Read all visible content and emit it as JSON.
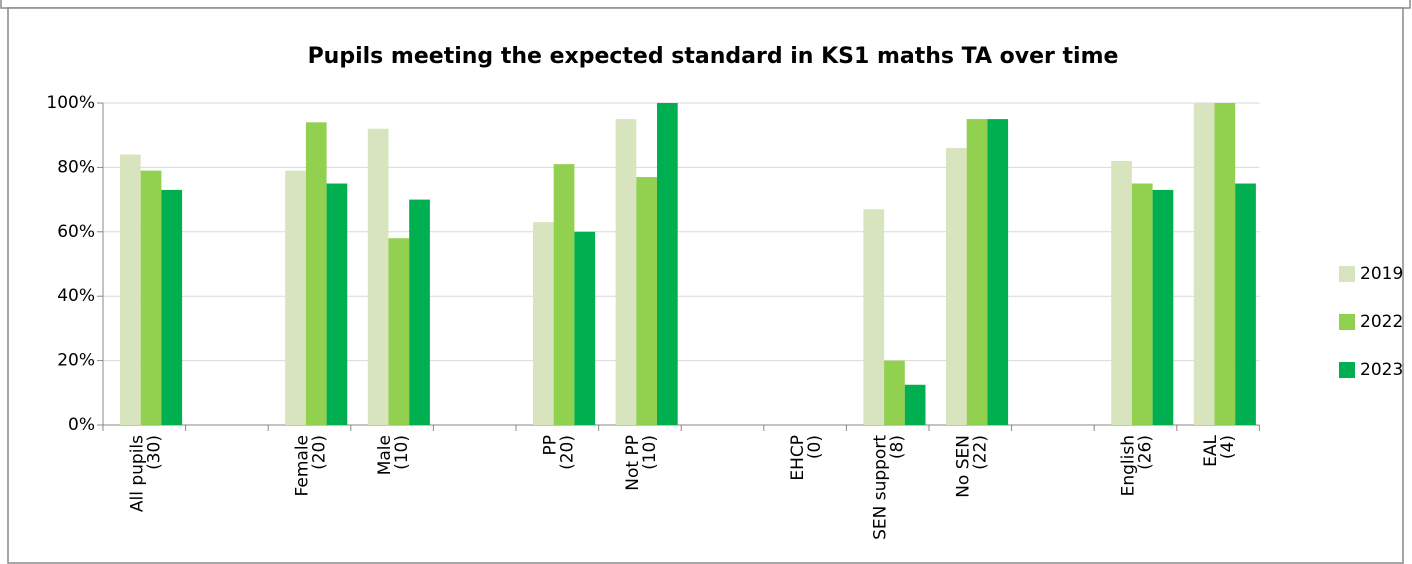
{
  "chart_data": {
    "type": "bar",
    "title": "Pupils meeting the expected standard in KS1 maths TA over time",
    "categories": [
      [
        "All pupils",
        "(30)"
      ],
      null,
      [
        "Female",
        "(20)"
      ],
      [
        "Male",
        "(10)"
      ],
      null,
      [
        "PP",
        "(20)"
      ],
      [
        "Not PP",
        "(10)"
      ],
      null,
      [
        "EHCP",
        "(0)"
      ],
      [
        "SEN support",
        "(8)"
      ],
      [
        "No SEN",
        "(22)"
      ],
      null,
      [
        "English",
        "(26)"
      ],
      [
        "EAL",
        "(4)"
      ]
    ],
    "series": [
      {
        "name": "2019",
        "color": "#d7e4bd",
        "values": [
          84,
          null,
          79,
          92,
          null,
          63,
          95,
          null,
          null,
          67,
          86,
          null,
          82,
          100
        ]
      },
      {
        "name": "2022",
        "color": "#92d050",
        "values": [
          79,
          null,
          94,
          58,
          null,
          81,
          77,
          null,
          null,
          20,
          95,
          null,
          75,
          100
        ]
      },
      {
        "name": "2023",
        "color": "#00b050",
        "values": [
          73,
          null,
          75,
          70,
          null,
          60,
          100,
          null,
          null,
          12.5,
          95,
          null,
          73,
          75
        ]
      }
    ],
    "ylim": [
      0,
      100
    ],
    "yticks": [
      {
        "value": 0,
        "label": "0%"
      },
      {
        "value": 20,
        "label": "20%"
      },
      {
        "value": 40,
        "label": "40%"
      },
      {
        "value": 60,
        "label": "60%"
      },
      {
        "value": 80,
        "label": "80%"
      },
      {
        "value": 100,
        "label": "100%"
      }
    ],
    "grid": true,
    "legend": "right"
  }
}
